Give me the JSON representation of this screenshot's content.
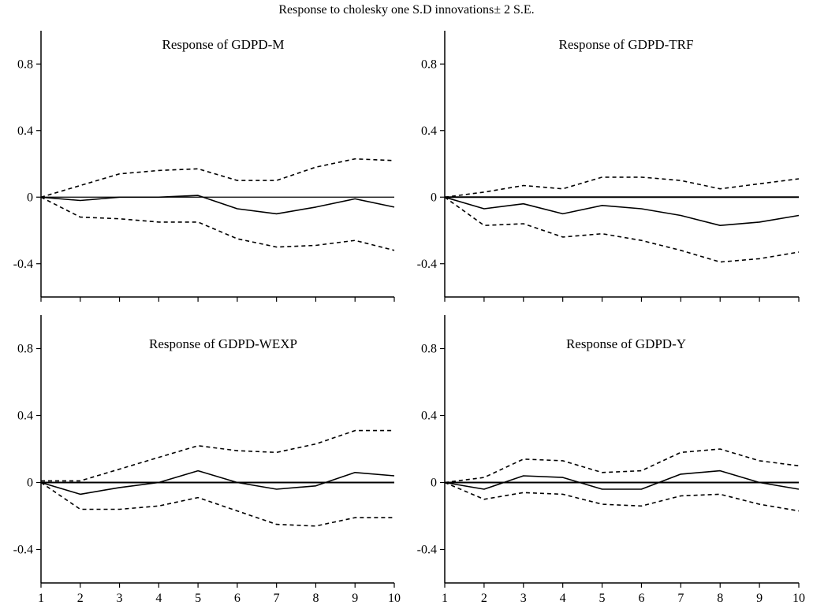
{
  "title": "Response to cholesky one S.D innovations± 2 S.E.",
  "chart_data": [
    {
      "type": "line",
      "title": "Response of GDPD-M",
      "x": [
        1,
        2,
        3,
        4,
        5,
        6,
        7,
        8,
        9,
        10
      ],
      "ylim": [
        -0.6,
        1.0
      ],
      "yticks": [
        -0.4,
        0,
        0.4,
        0.8
      ],
      "ytick_labels": [
        "-0.4",
        "0",
        "0.4",
        "0.8"
      ],
      "xtick_labels": [],
      "series": [
        {
          "role": "response",
          "style": "solid",
          "values": [
            0.0,
            -0.02,
            0.0,
            0.0,
            0.01,
            -0.07,
            -0.1,
            -0.06,
            -0.01,
            -0.06
          ]
        },
        {
          "role": "upper-band",
          "style": "dashed",
          "values": [
            0.0,
            0.07,
            0.14,
            0.16,
            0.17,
            0.1,
            0.1,
            0.18,
            0.23,
            0.22
          ]
        },
        {
          "role": "lower-band",
          "style": "dashed",
          "values": [
            0.0,
            -0.12,
            -0.13,
            -0.15,
            -0.15,
            -0.25,
            -0.3,
            -0.29,
            -0.26,
            -0.32
          ]
        }
      ]
    },
    {
      "type": "line",
      "title": "Response of GDPD-TRF",
      "x": [
        1,
        2,
        3,
        4,
        5,
        6,
        7,
        8,
        9,
        10
      ],
      "ylim": [
        -0.6,
        1.0
      ],
      "yticks": [
        -0.4,
        0,
        0.4,
        0.8
      ],
      "ytick_labels": [
        "-0.4",
        "0",
        "0.4",
        "0.8"
      ],
      "xtick_labels": [],
      "series": [
        {
          "role": "response",
          "style": "solid",
          "values": [
            0.0,
            -0.07,
            -0.04,
            -0.1,
            -0.05,
            -0.07,
            -0.11,
            -0.17,
            -0.15,
            -0.11
          ]
        },
        {
          "role": "upper-band",
          "style": "dashed",
          "values": [
            0.0,
            0.03,
            0.07,
            0.05,
            0.12,
            0.12,
            0.1,
            0.05,
            0.08,
            0.11
          ]
        },
        {
          "role": "lower-band",
          "style": "dashed",
          "values": [
            0.0,
            -0.17,
            -0.16,
            -0.24,
            -0.22,
            -0.26,
            -0.32,
            -0.39,
            -0.37,
            -0.33
          ]
        }
      ]
    },
    {
      "type": "line",
      "title": "Response of GDPD-WEXP",
      "x": [
        1,
        2,
        3,
        4,
        5,
        6,
        7,
        8,
        9,
        10
      ],
      "ylim": [
        -0.6,
        1.0
      ],
      "yticks": [
        -0.4,
        0,
        0.4,
        0.8
      ],
      "ytick_labels": [
        "-0.4",
        "0",
        "0.4",
        "0.8"
      ],
      "xtick_labels": [
        "1",
        "2",
        "3",
        "4",
        "5",
        "6",
        "7",
        "8",
        "9",
        "10"
      ],
      "series": [
        {
          "role": "response",
          "style": "solid",
          "values": [
            0.0,
            -0.07,
            -0.03,
            0.0,
            0.07,
            0.0,
            -0.04,
            -0.02,
            0.06,
            0.04
          ]
        },
        {
          "role": "upper-band",
          "style": "dashed",
          "values": [
            0.01,
            0.01,
            0.08,
            0.15,
            0.22,
            0.19,
            0.18,
            0.23,
            0.31,
            0.31
          ]
        },
        {
          "role": "lower-band",
          "style": "dashed",
          "values": [
            0.0,
            -0.16,
            -0.16,
            -0.14,
            -0.09,
            -0.17,
            -0.25,
            -0.26,
            -0.21,
            -0.21
          ]
        }
      ]
    },
    {
      "type": "line",
      "title": "Response of GDPD-Y",
      "x": [
        1,
        2,
        3,
        4,
        5,
        6,
        7,
        8,
        9,
        10
      ],
      "ylim": [
        -0.6,
        1.0
      ],
      "yticks": [
        -0.4,
        0,
        0.4,
        0.8
      ],
      "ytick_labels": [
        "-0.4",
        "0",
        "0.4",
        "0.8"
      ],
      "xtick_labels": [
        "1",
        "2",
        "3",
        "4",
        "5",
        "6",
        "7",
        "8",
        "9",
        "10"
      ],
      "series": [
        {
          "role": "response",
          "style": "solid",
          "values": [
            0.0,
            -0.04,
            0.04,
            0.03,
            -0.04,
            -0.04,
            0.05,
            0.07,
            0.0,
            -0.04
          ]
        },
        {
          "role": "upper-band",
          "style": "dashed",
          "values": [
            0.0,
            0.03,
            0.14,
            0.13,
            0.06,
            0.07,
            0.18,
            0.2,
            0.13,
            0.1
          ]
        },
        {
          "role": "lower-band",
          "style": "dashed",
          "values": [
            0.0,
            -0.1,
            -0.06,
            -0.07,
            -0.13,
            -0.14,
            -0.08,
            -0.07,
            -0.13,
            -0.17
          ]
        }
      ]
    }
  ]
}
